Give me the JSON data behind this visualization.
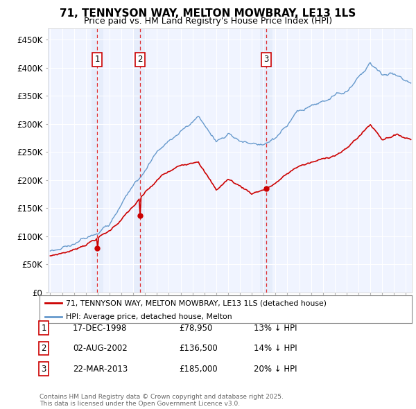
{
  "title": "71, TENNYSON WAY, MELTON MOWBRAY, LE13 1LS",
  "subtitle": "Price paid vs. HM Land Registry's House Price Index (HPI)",
  "background_color": "#ffffff",
  "plot_bg_color": "#f0f4ff",
  "legend_entry1": "71, TENNYSON WAY, MELTON MOWBRAY, LE13 1LS (detached house)",
  "legend_entry2": "HPI: Average price, detached house, Melton",
  "footer": "Contains HM Land Registry data © Crown copyright and database right 2025.\nThis data is licensed under the Open Government Licence v3.0.",
  "transactions": [
    {
      "num": 1,
      "date": "17-DEC-1998",
      "price": 78950,
      "hpi_diff": "13% ↓ HPI",
      "year": 1998.96
    },
    {
      "num": 2,
      "date": "02-AUG-2002",
      "price": 136500,
      "hpi_diff": "14% ↓ HPI",
      "year": 2002.58
    },
    {
      "num": 3,
      "date": "22-MAR-2013",
      "price": 185000,
      "hpi_diff": "20% ↓ HPI",
      "year": 2013.22
    }
  ],
  "property_line_color": "#cc0000",
  "hpi_line_color": "#6699cc",
  "span_color": "#ccd9f0",
  "ylim": [
    0,
    470000
  ],
  "yticks": [
    0,
    50000,
    100000,
    150000,
    200000,
    250000,
    300000,
    350000,
    400000,
    450000
  ],
  "ytick_labels": [
    "£0",
    "£50K",
    "£100K",
    "£150K",
    "£200K",
    "£250K",
    "£300K",
    "£350K",
    "£400K",
    "£450K"
  ],
  "xlim_start": 1994.8,
  "xlim_end": 2025.5
}
